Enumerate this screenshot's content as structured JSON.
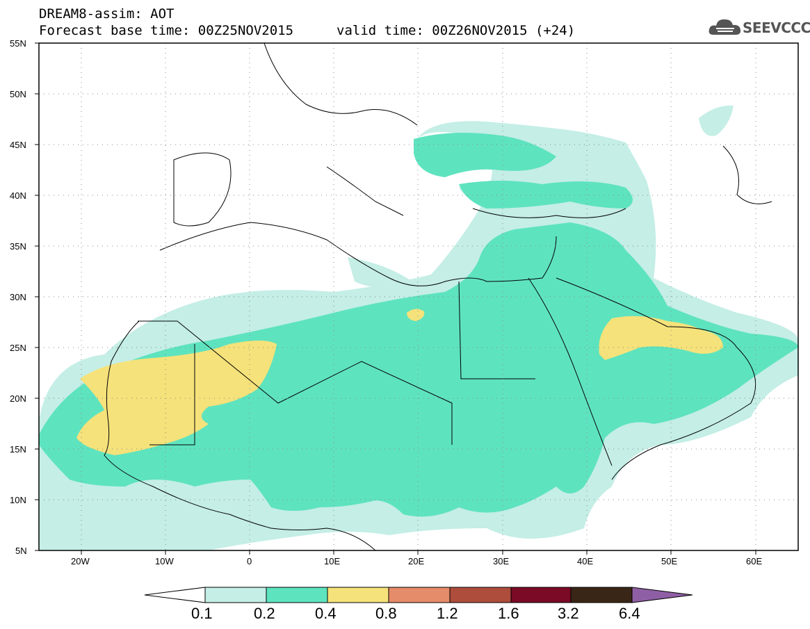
{
  "header": {
    "title_line1": "DREAM8-assim: AOT",
    "base_time": "Forecast base time: 00Z25NOV2015",
    "valid_time": "valid time: 00Z26NOV2015 (+24)"
  },
  "logo": {
    "text": "SEEVCCC",
    "icon": "cloud-icon"
  },
  "map": {
    "lat_labels": [
      "55N",
      "50N",
      "45N",
      "40N",
      "35N",
      "30N",
      "25N",
      "20N",
      "15N",
      "10N",
      "5N"
    ],
    "lon_labels": [
      "20W",
      "10W",
      "0",
      "10E",
      "20E",
      "30E",
      "40E",
      "50E",
      "60E"
    ]
  },
  "colorbar": {
    "labels": [
      "0.1",
      "0.2",
      "0.4",
      "0.8",
      "1.2",
      "1.6",
      "3.2",
      "6.4"
    ],
    "colors": [
      "#ffffff",
      "#c4eee6",
      "#5ee3bf",
      "#f5e27a",
      "#e58c6a",
      "#ae4d3b",
      "#7a0a26",
      "#3a2616",
      "#8f5fa5"
    ]
  }
}
